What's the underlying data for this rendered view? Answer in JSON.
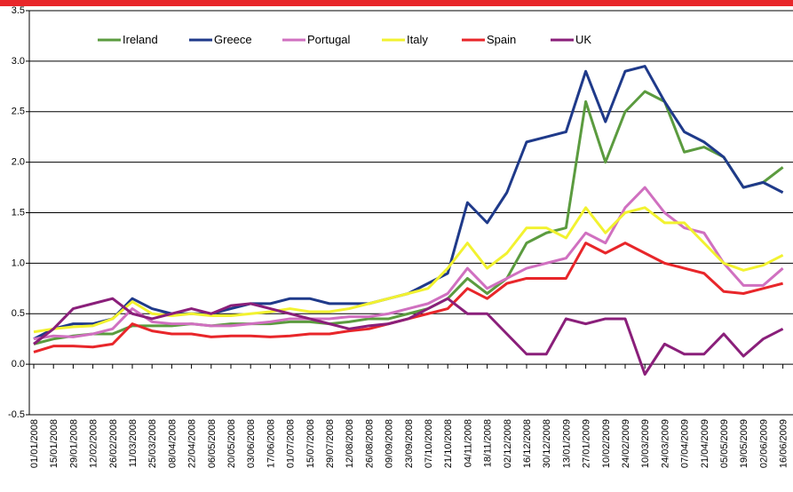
{
  "chart_data": {
    "type": "line",
    "categories": [
      "01/01/2008",
      "15/01/2008",
      "29/01/2008",
      "12/02/2008",
      "26/02/2008",
      "11/03/2008",
      "25/03/2008",
      "08/04/2008",
      "22/04/2008",
      "06/05/2008",
      "20/05/2008",
      "03/06/2008",
      "17/06/2008",
      "01/07/2008",
      "15/07/2008",
      "29/07/2008",
      "12/08/2008",
      "26/08/2008",
      "09/09/2008",
      "23/09/2008",
      "07/10/2008",
      "21/10/2008",
      "04/11/2008",
      "18/11/2008",
      "02/12/2008",
      "16/12/2008",
      "30/12/2008",
      "13/01/2009",
      "27/01/2009",
      "10/02/2009",
      "24/02/2009",
      "10/03/2009",
      "24/03/2009",
      "07/04/2009",
      "21/04/2009",
      "05/05/2009",
      "19/05/2009",
      "02/06/2009",
      "16/06/2009"
    ],
    "series": [
      {
        "name": "Ireland",
        "color": "#5b9b3f",
        "values": [
          0.2,
          0.25,
          0.28,
          0.3,
          0.3,
          0.38,
          0.38,
          0.38,
          0.4,
          0.38,
          0.4,
          0.4,
          0.4,
          0.42,
          0.42,
          0.4,
          0.42,
          0.45,
          0.45,
          0.5,
          0.55,
          0.65,
          0.85,
          0.7,
          0.85,
          1.2,
          1.3,
          1.35,
          2.6,
          2.0,
          2.5,
          2.7,
          2.6,
          2.1,
          2.15,
          2.05,
          1.75,
          1.8,
          1.95
        ]
      },
      {
        "name": "Greece",
        "color": "#1f3a8a",
        "values": [
          0.25,
          0.35,
          0.4,
          0.4,
          0.45,
          0.65,
          0.55,
          0.5,
          0.5,
          0.5,
          0.55,
          0.6,
          0.6,
          0.65,
          0.65,
          0.6,
          0.6,
          0.6,
          0.65,
          0.7,
          0.8,
          0.9,
          1.6,
          1.4,
          1.7,
          2.2,
          2.25,
          2.3,
          2.9,
          2.4,
          2.9,
          2.95,
          2.6,
          2.3,
          2.2,
          2.05,
          1.75,
          1.8,
          1.7
        ]
      },
      {
        "name": "Portugal",
        "color": "#d070c0",
        "values": [
          0.25,
          0.28,
          0.27,
          0.3,
          0.35,
          0.55,
          0.42,
          0.4,
          0.4,
          0.38,
          0.38,
          0.4,
          0.42,
          0.45,
          0.45,
          0.45,
          0.47,
          0.47,
          0.5,
          0.55,
          0.6,
          0.7,
          0.95,
          0.75,
          0.85,
          0.95,
          1.0,
          1.05,
          1.3,
          1.2,
          1.55,
          1.75,
          1.5,
          1.35,
          1.3,
          1.0,
          0.78,
          0.78,
          0.95
        ]
      },
      {
        "name": "Italy",
        "color": "#f2f230",
        "values": [
          0.32,
          0.35,
          0.37,
          0.38,
          0.45,
          0.62,
          0.5,
          0.48,
          0.5,
          0.48,
          0.48,
          0.5,
          0.52,
          0.55,
          0.52,
          0.52,
          0.55,
          0.6,
          0.65,
          0.7,
          0.75,
          0.95,
          1.2,
          0.95,
          1.1,
          1.35,
          1.35,
          1.25,
          1.55,
          1.3,
          1.5,
          1.55,
          1.4,
          1.4,
          1.2,
          1.0,
          0.93,
          0.98,
          1.08
        ]
      },
      {
        "name": "Spain",
        "color": "#e8262a",
        "values": [
          0.12,
          0.18,
          0.18,
          0.17,
          0.2,
          0.4,
          0.33,
          0.3,
          0.3,
          0.27,
          0.28,
          0.28,
          0.27,
          0.28,
          0.3,
          0.3,
          0.33,
          0.35,
          0.4,
          0.45,
          0.5,
          0.55,
          0.75,
          0.65,
          0.8,
          0.85,
          0.85,
          0.85,
          1.2,
          1.1,
          1.2,
          1.1,
          1.0,
          0.95,
          0.9,
          0.72,
          0.7,
          0.75,
          0.8
        ]
      },
      {
        "name": "UK",
        "color": "#8a1f7a",
        "values": [
          0.2,
          0.35,
          0.55,
          0.6,
          0.65,
          0.5,
          0.45,
          0.5,
          0.55,
          0.5,
          0.58,
          0.6,
          0.55,
          0.5,
          0.45,
          0.4,
          0.35,
          0.38,
          0.4,
          0.45,
          0.55,
          0.65,
          0.5,
          0.5,
          0.3,
          0.1,
          0.1,
          0.45,
          0.4,
          0.45,
          0.45,
          -0.1,
          0.2,
          0.1,
          0.1,
          0.3,
          0.08,
          0.25,
          0.35
        ]
      }
    ],
    "ylim": [
      -0.5,
      3.5
    ],
    "yticks": [
      {
        "value": -0.5,
        "label": "-0.5"
      },
      {
        "value": 0,
        "label": "0.0"
      },
      {
        "value": 0.5,
        "label": "0.5"
      },
      {
        "value": 1,
        "label": "1.0"
      },
      {
        "value": 1.5,
        "label": "1.5"
      },
      {
        "value": 2,
        "label": "2.0"
      },
      {
        "value": 2.5,
        "label": "2.5"
      },
      {
        "value": 3,
        "label": "3.0"
      },
      {
        "value": 3.5,
        "label": "3.5"
      }
    ],
    "grid": true,
    "legend": "top"
  }
}
